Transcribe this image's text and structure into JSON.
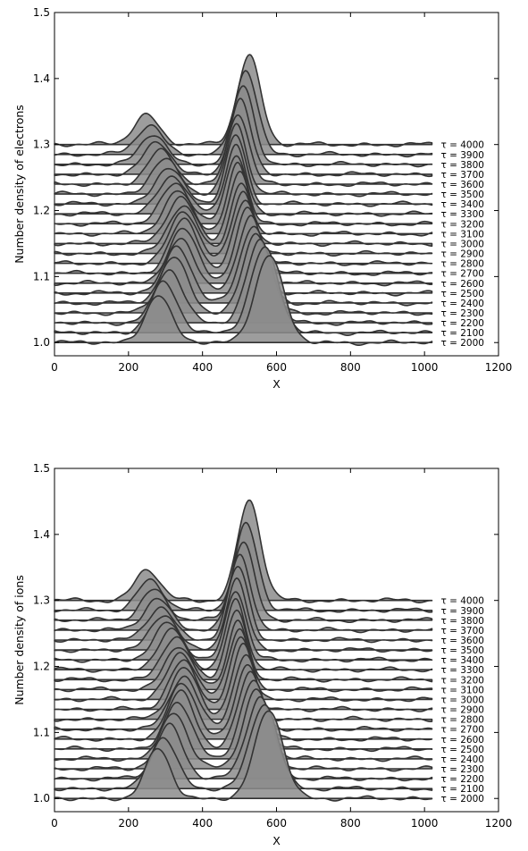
{
  "chart_data": [
    {
      "type": "line",
      "chart_style": "waterfall stacked profiles, each trace offset vertically by 0.015 per tau step and filled gray",
      "xlabel": "X",
      "ylabel": "Number density of electrons",
      "xlim": [
        0,
        1200
      ],
      "ylim": [
        0.98,
        1.5
      ],
      "xticks": [
        "0",
        "200",
        "400",
        "600",
        "800",
        "1000",
        "1200"
      ],
      "yticks": [
        "1.0",
        "1.1",
        "1.2",
        "1.3",
        "1.4",
        "1.5"
      ],
      "x_range_of_traces": [
        0,
        1020
      ],
      "trace_offset_step": 0.015,
      "grid": false,
      "legend": "series labels at right end of each trace",
      "fill_color": "#8c8c8c",
      "line_color": "#333333",
      "series": [
        {
          "name": "τ = 2000",
          "baseline": 1.0,
          "peaks": [
            {
              "x": 280,
              "height": 0.073,
              "width": 34
            },
            {
              "x": 580,
              "height": 0.133,
              "width": 38
            }
          ]
        },
        {
          "name": "τ = 2100",
          "baseline": 1.015,
          "peaks": [
            {
              "x": 295,
              "height": 0.075,
              "width": 36
            },
            {
              "x": 567,
              "height": 0.128,
              "width": 37
            }
          ]
        },
        {
          "name": "τ = 2200",
          "baseline": 1.03,
          "peaks": [
            {
              "x": 310,
              "height": 0.08,
              "width": 37
            },
            {
              "x": 556,
              "height": 0.123,
              "width": 36
            }
          ]
        },
        {
          "name": "τ = 2300",
          "baseline": 1.045,
          "peaks": [
            {
              "x": 322,
              "height": 0.085,
              "width": 38
            },
            {
              "x": 546,
              "height": 0.12,
              "width": 35
            }
          ]
        },
        {
          "name": "τ = 2400",
          "baseline": 1.06,
          "peaks": [
            {
              "x": 332,
              "height": 0.085,
              "width": 38
            },
            {
              "x": 538,
              "height": 0.118,
              "width": 34
            }
          ]
        },
        {
          "name": "τ = 2500",
          "baseline": 1.075,
          "peaks": [
            {
              "x": 340,
              "height": 0.085,
              "width": 38
            },
            {
              "x": 530,
              "height": 0.116,
              "width": 33
            }
          ]
        },
        {
          "name": "τ = 2600",
          "baseline": 1.09,
          "peaks": [
            {
              "x": 346,
              "height": 0.083,
              "width": 38
            },
            {
              "x": 523,
              "height": 0.114,
              "width": 32
            }
          ]
        },
        {
          "name": "τ = 2700",
          "baseline": 1.105,
          "peaks": [
            {
              "x": 350,
              "height": 0.08,
              "width": 38
            },
            {
              "x": 516,
              "height": 0.112,
              "width": 31
            }
          ]
        },
        {
          "name": "τ = 2800",
          "baseline": 1.12,
          "peaks": [
            {
              "x": 350,
              "height": 0.078,
              "width": 38
            },
            {
              "x": 510,
              "height": 0.11,
              "width": 30
            }
          ]
        },
        {
          "name": "τ = 2900",
          "baseline": 1.135,
          "peaks": [
            {
              "x": 348,
              "height": 0.073,
              "width": 38
            },
            {
              "x": 505,
              "height": 0.108,
              "width": 29
            }
          ]
        },
        {
          "name": "τ = 3000",
          "baseline": 1.15,
          "peaks": [
            {
              "x": 342,
              "height": 0.07,
              "width": 38
            },
            {
              "x": 500,
              "height": 0.107,
              "width": 28
            }
          ]
        },
        {
          "name": "τ = 3100",
          "baseline": 1.165,
          "peaks": [
            {
              "x": 335,
              "height": 0.065,
              "width": 38
            },
            {
              "x": 496,
              "height": 0.105,
              "width": 27
            }
          ]
        },
        {
          "name": "τ = 3200",
          "baseline": 1.18,
          "peaks": [
            {
              "x": 327,
              "height": 0.062,
              "width": 38
            },
            {
              "x": 492,
              "height": 0.105,
              "width": 27
            }
          ]
        },
        {
          "name": "τ = 3300",
          "baseline": 1.195,
          "peaks": [
            {
              "x": 318,
              "height": 0.058,
              "width": 38
            },
            {
              "x": 490,
              "height": 0.105,
              "width": 27
            }
          ]
        },
        {
          "name": "τ = 3400",
          "baseline": 1.21,
          "peaks": [
            {
              "x": 308,
              "height": 0.055,
              "width": 37
            },
            {
              "x": 490,
              "height": 0.105,
              "width": 27
            }
          ]
        },
        {
          "name": "τ = 3500",
          "baseline": 1.225,
          "peaks": [
            {
              "x": 298,
              "height": 0.052,
              "width": 37
            },
            {
              "x": 492,
              "height": 0.106,
              "width": 27
            }
          ]
        },
        {
          "name": "τ = 3600",
          "baseline": 1.24,
          "peaks": [
            {
              "x": 288,
              "height": 0.05,
              "width": 36
            },
            {
              "x": 496,
              "height": 0.108,
              "width": 28
            }
          ]
        },
        {
          "name": "τ = 3700",
          "baseline": 1.255,
          "peaks": [
            {
              "x": 278,
              "height": 0.048,
              "width": 36
            },
            {
              "x": 502,
              "height": 0.112,
              "width": 28
            }
          ]
        },
        {
          "name": "τ = 3800",
          "baseline": 1.27,
          "peaks": [
            {
              "x": 268,
              "height": 0.046,
              "width": 35
            },
            {
              "x": 510,
              "height": 0.118,
              "width": 29
            }
          ]
        },
        {
          "name": "τ = 3900",
          "baseline": 1.285,
          "peaks": [
            {
              "x": 258,
              "height": 0.045,
              "width": 35
            },
            {
              "x": 518,
              "height": 0.128,
              "width": 30
            }
          ]
        },
        {
          "name": "τ = 4000",
          "baseline": 1.3,
          "peaks": [
            {
              "x": 248,
              "height": 0.046,
              "width": 34
            },
            {
              "x": 526,
              "height": 0.136,
              "width": 31
            }
          ]
        }
      ]
    },
    {
      "type": "line",
      "chart_style": "waterfall stacked profiles, each trace offset vertically by 0.015 per tau step and filled gray",
      "xlabel": "X",
      "ylabel": "Number density of ions",
      "xlim": [
        0,
        1200
      ],
      "ylim": [
        0.98,
        1.5
      ],
      "xticks": [
        "0",
        "200",
        "400",
        "600",
        "800",
        "1000",
        "1200"
      ],
      "yticks": [
        "1.0",
        "1.1",
        "1.2",
        "1.3",
        "1.4",
        "1.5"
      ],
      "x_range_of_traces": [
        0,
        1020
      ],
      "trace_offset_step": 0.015,
      "grid": false,
      "legend": "series labels at right end of each trace",
      "fill_color": "#8c8c8c",
      "line_color": "#333333",
      "series": [
        {
          "name": "τ = 2000",
          "baseline": 1.0,
          "peaks": [
            {
              "x": 280,
              "height": 0.075,
              "width": 33
            },
            {
              "x": 580,
              "height": 0.133,
              "width": 38
            }
          ]
        },
        {
          "name": "τ = 2100",
          "baseline": 1.015,
          "peaks": [
            {
              "x": 295,
              "height": 0.078,
              "width": 35
            },
            {
              "x": 567,
              "height": 0.128,
              "width": 37
            }
          ]
        },
        {
          "name": "τ = 2200",
          "baseline": 1.03,
          "peaks": [
            {
              "x": 310,
              "height": 0.082,
              "width": 36
            },
            {
              "x": 556,
              "height": 0.124,
              "width": 36
            }
          ]
        },
        {
          "name": "τ = 2300",
          "baseline": 1.045,
          "peaks": [
            {
              "x": 322,
              "height": 0.086,
              "width": 37
            },
            {
              "x": 546,
              "height": 0.121,
              "width": 35
            }
          ]
        },
        {
          "name": "τ = 2400",
          "baseline": 1.06,
          "peaks": [
            {
              "x": 332,
              "height": 0.086,
              "width": 37
            },
            {
              "x": 538,
              "height": 0.119,
              "width": 34
            }
          ]
        },
        {
          "name": "τ = 2500",
          "baseline": 1.075,
          "peaks": [
            {
              "x": 340,
              "height": 0.086,
              "width": 37
            },
            {
              "x": 530,
              "height": 0.117,
              "width": 33
            }
          ]
        },
        {
          "name": "τ = 2600",
          "baseline": 1.09,
          "peaks": [
            {
              "x": 346,
              "height": 0.084,
              "width": 37
            },
            {
              "x": 523,
              "height": 0.115,
              "width": 32
            }
          ]
        },
        {
          "name": "τ = 2700",
          "baseline": 1.105,
          "peaks": [
            {
              "x": 350,
              "height": 0.081,
              "width": 37
            },
            {
              "x": 516,
              "height": 0.113,
              "width": 31
            }
          ]
        },
        {
          "name": "τ = 2800",
          "baseline": 1.12,
          "peaks": [
            {
              "x": 350,
              "height": 0.079,
              "width": 37
            },
            {
              "x": 510,
              "height": 0.111,
              "width": 30
            }
          ]
        },
        {
          "name": "τ = 2900",
          "baseline": 1.135,
          "peaks": [
            {
              "x": 348,
              "height": 0.074,
              "width": 37
            },
            {
              "x": 505,
              "height": 0.109,
              "width": 29
            }
          ]
        },
        {
          "name": "τ = 3000",
          "baseline": 1.15,
          "peaks": [
            {
              "x": 342,
              "height": 0.071,
              "width": 37
            },
            {
              "x": 500,
              "height": 0.108,
              "width": 28
            }
          ]
        },
        {
          "name": "τ = 3100",
          "baseline": 1.165,
          "peaks": [
            {
              "x": 335,
              "height": 0.066,
              "width": 37
            },
            {
              "x": 496,
              "height": 0.106,
              "width": 27
            }
          ]
        },
        {
          "name": "τ = 3200",
          "baseline": 1.18,
          "peaks": [
            {
              "x": 327,
              "height": 0.063,
              "width": 37
            },
            {
              "x": 492,
              "height": 0.106,
              "width": 27
            }
          ]
        },
        {
          "name": "τ = 3300",
          "baseline": 1.195,
          "peaks": [
            {
              "x": 318,
              "height": 0.059,
              "width": 37
            },
            {
              "x": 490,
              "height": 0.106,
              "width": 27
            }
          ]
        },
        {
          "name": "τ = 3400",
          "baseline": 1.21,
          "peaks": [
            {
              "x": 308,
              "height": 0.056,
              "width": 36
            },
            {
              "x": 490,
              "height": 0.106,
              "width": 27
            }
          ]
        },
        {
          "name": "τ = 3500",
          "baseline": 1.225,
          "peaks": [
            {
              "x": 298,
              "height": 0.053,
              "width": 36
            },
            {
              "x": 492,
              "height": 0.107,
              "width": 27
            }
          ]
        },
        {
          "name": "τ = 3600",
          "baseline": 1.24,
          "peaks": [
            {
              "x": 288,
              "height": 0.051,
              "width": 35
            },
            {
              "x": 496,
              "height": 0.11,
              "width": 28
            }
          ]
        },
        {
          "name": "τ = 3700",
          "baseline": 1.255,
          "peaks": [
            {
              "x": 278,
              "height": 0.049,
              "width": 35
            },
            {
              "x": 502,
              "height": 0.114,
              "width": 28
            }
          ]
        },
        {
          "name": "τ = 3800",
          "baseline": 1.27,
          "peaks": [
            {
              "x": 268,
              "height": 0.047,
              "width": 34
            },
            {
              "x": 510,
              "height": 0.121,
              "width": 29
            }
          ]
        },
        {
          "name": "τ = 3900",
          "baseline": 1.285,
          "peaks": [
            {
              "x": 258,
              "height": 0.046,
              "width": 34
            },
            {
              "x": 518,
              "height": 0.132,
              "width": 30
            }
          ]
        },
        {
          "name": "τ = 4000",
          "baseline": 1.3,
          "peaks": [
            {
              "x": 250,
              "height": 0.047,
              "width": 33
            },
            {
              "x": 526,
              "height": 0.152,
              "width": 31
            }
          ]
        }
      ]
    }
  ]
}
